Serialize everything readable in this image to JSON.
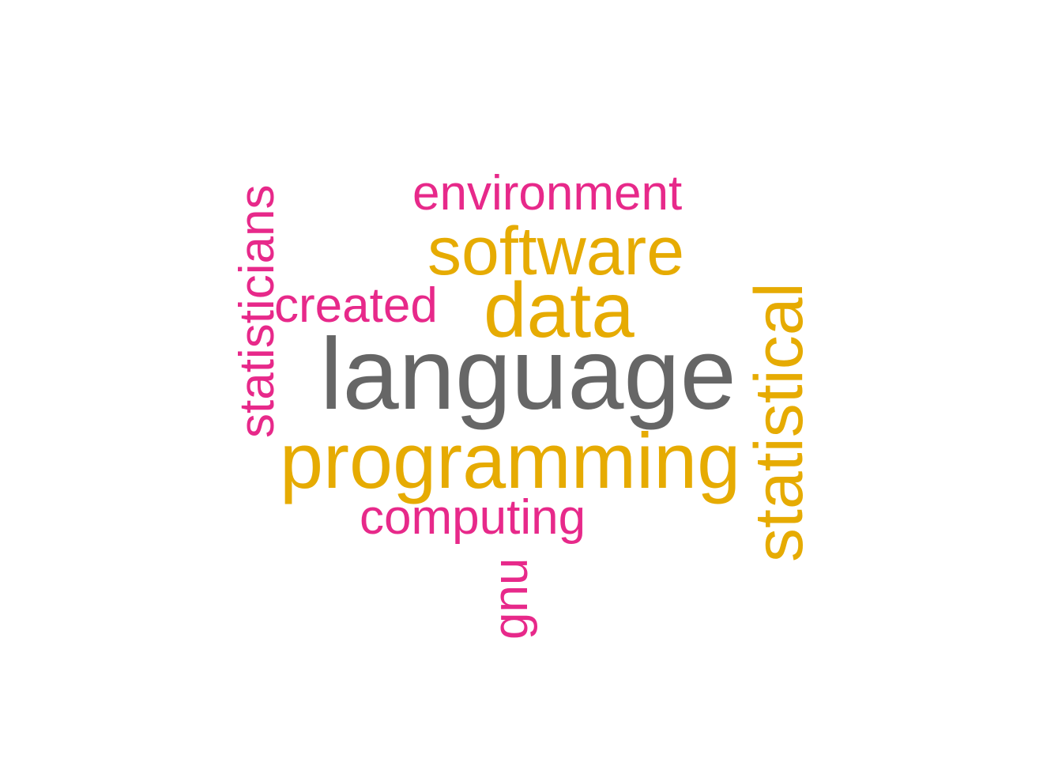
{
  "words": [
    {
      "text": "environment",
      "color": "#E7298A",
      "orientation": "horizontal"
    },
    {
      "text": "software",
      "color": "#E6AB02",
      "orientation": "horizontal"
    },
    {
      "text": "data",
      "color": "#E6AB02",
      "orientation": "horizontal"
    },
    {
      "text": "created",
      "color": "#E7298A",
      "orientation": "horizontal"
    },
    {
      "text": "language",
      "color": "#666666",
      "orientation": "horizontal"
    },
    {
      "text": "programming",
      "color": "#E6AB02",
      "orientation": "horizontal"
    },
    {
      "text": "computing",
      "color": "#E7298A",
      "orientation": "horizontal"
    },
    {
      "text": "statisticians",
      "color": "#E7298A",
      "orientation": "vertical"
    },
    {
      "text": "statistical",
      "color": "#E6AB02",
      "orientation": "vertical"
    },
    {
      "text": "gnu",
      "color": "#E7298A",
      "orientation": "vertical"
    }
  ]
}
